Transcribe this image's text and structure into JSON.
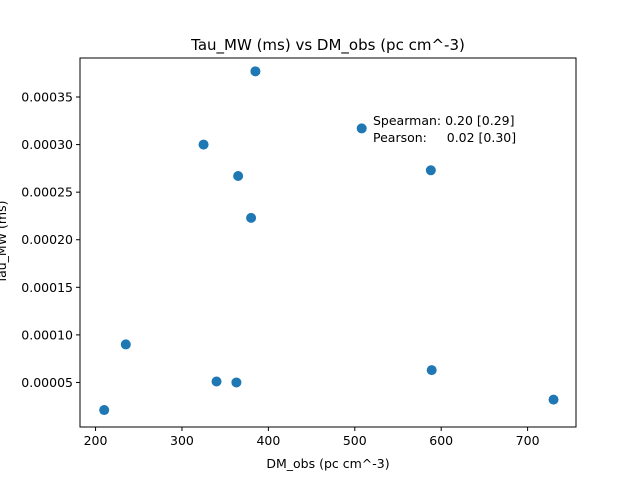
{
  "chart_data": {
    "type": "scatter",
    "title": "Tau_MW (ms) vs DM_obs (pc cm^-3)",
    "xlabel": "DM_obs (pc cm^-3)",
    "ylabel": "Tau_MW (ms)",
    "xlim": [
      182,
      756
    ],
    "ylim": [
      3.2e-06,
      0.000391
    ],
    "xticks": [
      200,
      300,
      400,
      500,
      600,
      700
    ],
    "xtick_labels": [
      "200",
      "300",
      "400",
      "500",
      "600",
      "700"
    ],
    "yticks": [
      5e-05,
      0.0001,
      0.00015,
      0.0002,
      0.00025,
      0.0003,
      0.00035
    ],
    "ytick_labels": [
      "0.00005",
      "0.00010",
      "0.00015",
      "0.00020",
      "0.00025",
      "0.00030",
      "0.00035"
    ],
    "grid": false,
    "marker_color": "#1f77b4",
    "series": [
      {
        "x": [
          210,
          235,
          325,
          340,
          363,
          365,
          380,
          385,
          508,
          588,
          589,
          730
        ],
        "y": [
          2.1e-05,
          9e-05,
          0.0003,
          5.1e-05,
          5e-05,
          0.000267,
          0.000223,
          0.000377,
          0.000317,
          0.000273,
          6.3e-05,
          3.2e-05
        ]
      }
    ],
    "annotations": [
      "Spearman: 0.20 [0.29]",
      "Pearson:     0.02 [0.30]"
    ]
  }
}
